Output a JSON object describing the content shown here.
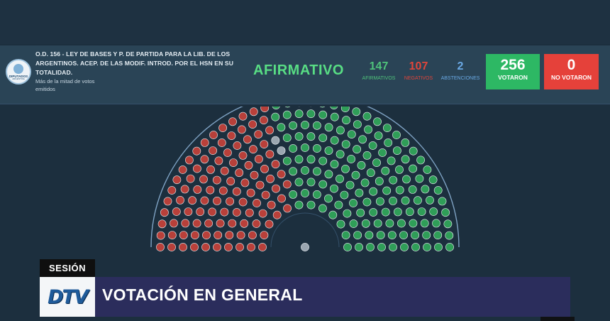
{
  "vote": {
    "bill_title": "O.D. 156 - LEY DE BASES Y P. DE PARTIDA PARA LA LIB. DE LOS ARGENTINOS. ACEP. DE LAS MODIF. INTROD. POR EL HSN EN SU TOTALIDAD.",
    "majority_rule": "Más de la mitad de votos emitidos",
    "result": "AFIRMATIVO",
    "afirmativos": {
      "value": "147",
      "label": "AFIRMATIVOS"
    },
    "negativos": {
      "value": "107",
      "label": "NEGATIVOS"
    },
    "abstenciones": {
      "value": "2",
      "label": "ABSTENCIONES"
    },
    "votaron": {
      "value": "256",
      "label": "VOTARON"
    },
    "no_votaron": {
      "value": "0",
      "label": "NO VOTARON"
    }
  },
  "logo": {
    "name": "DIPUTADOS",
    "sub": "ARGENTINA"
  },
  "chamber": {
    "seat_counts": {
      "negativo": 107,
      "afirmativo": 147,
      "abstencion": 2,
      "president": 1
    },
    "colors": {
      "negativo": "#b8403a",
      "afirmativo": "#2f9e58",
      "abstencion": "#9aa6b0",
      "outline": "#7fa3c4"
    }
  },
  "lower_third": {
    "tag": "SESIÓN",
    "channel_mark": "DTV",
    "title": "VOTACIÓN EN GENERAL"
  },
  "colors": {
    "afirmativo": "#4fc27a",
    "negativo": "#e0453a",
    "abstencion": "#6aa9e4",
    "votaron_bg": "#2db864",
    "no_votaron_bg": "#e5413a"
  }
}
